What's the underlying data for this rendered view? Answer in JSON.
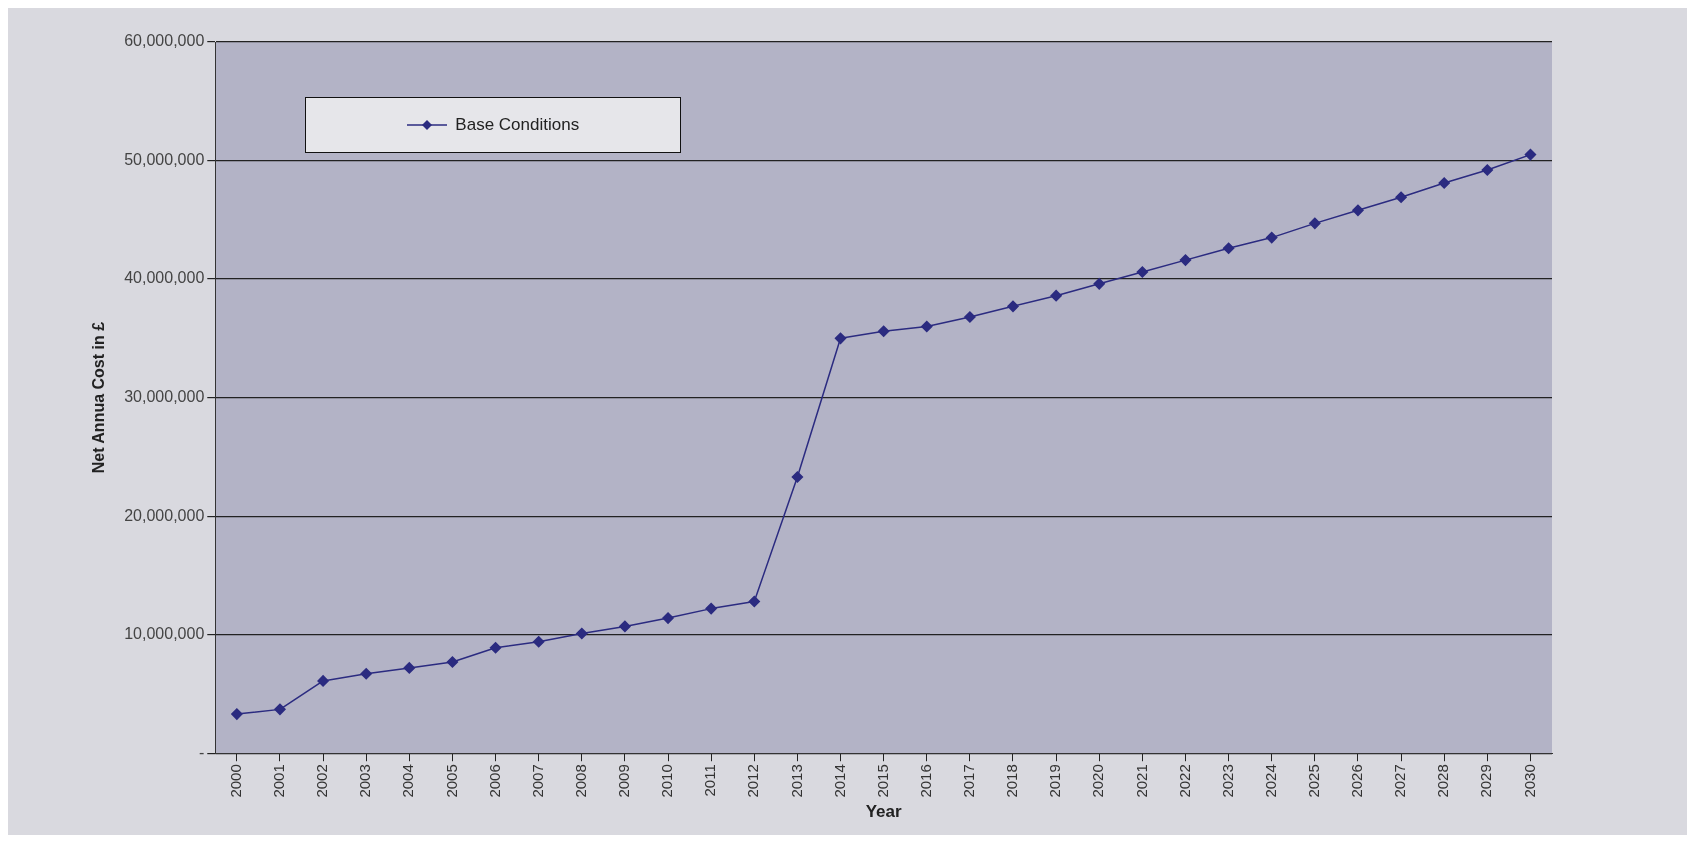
{
  "chart_data": {
    "type": "line",
    "xlabel": "Year",
    "ylabel": "Net Annua Cost in £",
    "categories": [
      "2000",
      "2001",
      "2002",
      "2003",
      "2004",
      "2005",
      "2006",
      "2007",
      "2008",
      "2009",
      "2010",
      "2011",
      "2012",
      "2013",
      "2014",
      "2015",
      "2016",
      "2017",
      "2018",
      "2019",
      "2020",
      "2021",
      "2022",
      "2023",
      "2024",
      "2025",
      "2026",
      "2027",
      "2028",
      "2029",
      "2030"
    ],
    "series": [
      {
        "name": "Base Conditions",
        "color": "#2b2b80",
        "values": [
          3300000,
          3700000,
          6100000,
          6700000,
          7200000,
          7700000,
          8900000,
          9400000,
          10100000,
          10700000,
          11400000,
          12200000,
          12800000,
          23300000,
          35000000,
          35600000,
          36000000,
          36800000,
          37700000,
          38600000,
          39600000,
          40600000,
          41600000,
          42600000,
          43500000,
          44700000,
          45800000,
          46900000,
          48100000,
          49200000,
          50500000
        ]
      }
    ],
    "ylim": [
      0,
      60000000
    ],
    "yticks": [
      {
        "value": 0,
        "label": "-"
      },
      {
        "value": 10000000,
        "label": "10,000,000"
      },
      {
        "value": 20000000,
        "label": "20,000,000"
      },
      {
        "value": 30000000,
        "label": "30,000,000"
      },
      {
        "value": 40000000,
        "label": "40,000,000"
      },
      {
        "value": 50000000,
        "label": "50,000,000"
      },
      {
        "value": 60000000,
        "label": "60,000,000"
      }
    ],
    "grid": "y",
    "legend": "top left",
    "marker": "diamond",
    "line_style": "solid"
  }
}
